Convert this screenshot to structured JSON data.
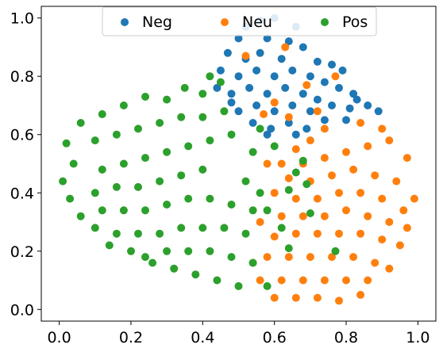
{
  "chart_data": {
    "type": "scatter",
    "title": "",
    "xlabel": "",
    "ylabel": "",
    "xlim": [
      -0.05,
      1.05
    ],
    "ylim": [
      -0.04,
      1.04
    ],
    "x_ticks": [
      0.0,
      0.2,
      0.4,
      0.6,
      0.8,
      1.0
    ],
    "x_tick_labels": [
      "0.0",
      "0.2",
      "0.4",
      "0.6",
      "0.8",
      "1.0"
    ],
    "y_ticks": [
      0.0,
      0.2,
      0.4,
      0.6,
      0.8,
      1.0
    ],
    "y_tick_labels": [
      "0.0",
      "0.2",
      "0.4",
      "0.6",
      "0.8",
      "1.0"
    ],
    "grid": false,
    "legend_position": "top-center",
    "series": [
      {
        "name": "Neg",
        "color": "#1f77b4",
        "points": [
          [
            0.52,
            0.97
          ],
          [
            0.56,
            0.99
          ],
          [
            0.6,
            1.0
          ],
          [
            0.66,
            0.97
          ],
          [
            0.64,
            0.92
          ],
          [
            0.58,
            0.93
          ],
          [
            0.5,
            0.93
          ],
          [
            0.47,
            0.88
          ],
          [
            0.52,
            0.86
          ],
          [
            0.56,
            0.88
          ],
          [
            0.62,
            0.86
          ],
          [
            0.68,
            0.9
          ],
          [
            0.72,
            0.85
          ],
          [
            0.76,
            0.84
          ],
          [
            0.79,
            0.82
          ],
          [
            0.45,
            0.82
          ],
          [
            0.5,
            0.8
          ],
          [
            0.55,
            0.82
          ],
          [
            0.6,
            0.8
          ],
          [
            0.65,
            0.82
          ],
          [
            0.7,
            0.8
          ],
          [
            0.74,
            0.78
          ],
          [
            0.78,
            0.76
          ],
          [
            0.82,
            0.74
          ],
          [
            0.44,
            0.76
          ],
          [
            0.48,
            0.74
          ],
          [
            0.53,
            0.76
          ],
          [
            0.58,
            0.74
          ],
          [
            0.63,
            0.76
          ],
          [
            0.68,
            0.74
          ],
          [
            0.72,
            0.72
          ],
          [
            0.76,
            0.7
          ],
          [
            0.81,
            0.69
          ],
          [
            0.86,
            0.7
          ],
          [
            0.89,
            0.68
          ],
          [
            0.5,
            0.68
          ],
          [
            0.55,
            0.7
          ],
          [
            0.6,
            0.68
          ],
          [
            0.65,
            0.7
          ],
          [
            0.7,
            0.68
          ],
          [
            0.74,
            0.65
          ],
          [
            0.8,
            0.65
          ],
          [
            0.54,
            0.64
          ],
          [
            0.59,
            0.62
          ],
          [
            0.64,
            0.64
          ],
          [
            0.69,
            0.62
          ],
          [
            0.66,
            0.6
          ],
          [
            0.58,
            0.6
          ],
          [
            0.48,
            0.71
          ],
          [
            0.83,
            0.72
          ]
        ]
      },
      {
        "name": "Neu",
        "color": "#ff7f0e",
        "points": [
          [
            0.52,
            0.87
          ],
          [
            0.63,
            0.9
          ],
          [
            0.69,
            0.77
          ],
          [
            0.77,
            0.8
          ],
          [
            0.6,
            0.71
          ],
          [
            0.57,
            0.67
          ],
          [
            0.72,
            0.68
          ],
          [
            0.64,
            0.66
          ],
          [
            0.7,
            0.58
          ],
          [
            0.66,
            0.55
          ],
          [
            0.62,
            0.5
          ],
          [
            0.68,
            0.5
          ],
          [
            0.74,
            0.52
          ],
          [
            0.8,
            0.54
          ],
          [
            0.86,
            0.56
          ],
          [
            0.92,
            0.58
          ],
          [
            0.97,
            0.52
          ],
          [
            0.64,
            0.45
          ],
          [
            0.7,
            0.44
          ],
          [
            0.76,
            0.46
          ],
          [
            0.82,
            0.48
          ],
          [
            0.88,
            0.46
          ],
          [
            0.94,
            0.44
          ],
          [
            0.99,
            0.38
          ],
          [
            0.6,
            0.4
          ],
          [
            0.66,
            0.38
          ],
          [
            0.72,
            0.38
          ],
          [
            0.78,
            0.4
          ],
          [
            0.84,
            0.4
          ],
          [
            0.9,
            0.38
          ],
          [
            0.96,
            0.34
          ],
          [
            0.62,
            0.32
          ],
          [
            0.68,
            0.32
          ],
          [
            0.74,
            0.32
          ],
          [
            0.8,
            0.34
          ],
          [
            0.86,
            0.32
          ],
          [
            0.92,
            0.3
          ],
          [
            0.97,
            0.28
          ],
          [
            0.6,
            0.25
          ],
          [
            0.66,
            0.26
          ],
          [
            0.72,
            0.26
          ],
          [
            0.78,
            0.26
          ],
          [
            0.84,
            0.26
          ],
          [
            0.9,
            0.24
          ],
          [
            0.95,
            0.22
          ],
          [
            0.58,
            0.18
          ],
          [
            0.64,
            0.18
          ],
          [
            0.7,
            0.18
          ],
          [
            0.76,
            0.18
          ],
          [
            0.82,
            0.18
          ],
          [
            0.88,
            0.16
          ],
          [
            0.92,
            0.14
          ],
          [
            0.56,
            0.1
          ],
          [
            0.62,
            0.1
          ],
          [
            0.68,
            0.1
          ],
          [
            0.74,
            0.1
          ],
          [
            0.8,
            0.1
          ],
          [
            0.86,
            0.1
          ],
          [
            0.6,
            0.04
          ],
          [
            0.66,
            0.04
          ],
          [
            0.72,
            0.04
          ],
          [
            0.78,
            0.03
          ],
          [
            0.84,
            0.05
          ],
          [
            0.54,
            0.16
          ],
          [
            0.56,
            0.3
          ],
          [
            0.58,
            0.5
          ],
          [
            0.74,
            0.62
          ],
          [
            0.84,
            0.64
          ],
          [
            0.9,
            0.62
          ]
        ]
      },
      {
        "name": "Pos",
        "color": "#2ca02c",
        "points": [
          [
            0.42,
            0.8
          ],
          [
            0.45,
            0.78
          ],
          [
            0.4,
            0.74
          ],
          [
            0.35,
            0.76
          ],
          [
            0.3,
            0.72
          ],
          [
            0.24,
            0.73
          ],
          [
            0.18,
            0.7
          ],
          [
            0.12,
            0.67
          ],
          [
            0.06,
            0.64
          ],
          [
            0.02,
            0.57
          ],
          [
            0.04,
            0.5
          ],
          [
            0.01,
            0.44
          ],
          [
            0.03,
            0.38
          ],
          [
            0.06,
            0.32
          ],
          [
            0.1,
            0.28
          ],
          [
            0.14,
            0.22
          ],
          [
            0.2,
            0.2
          ],
          [
            0.26,
            0.16
          ],
          [
            0.32,
            0.14
          ],
          [
            0.38,
            0.12
          ],
          [
            0.44,
            0.1
          ],
          [
            0.5,
            0.08
          ],
          [
            0.1,
            0.58
          ],
          [
            0.16,
            0.6
          ],
          [
            0.22,
            0.62
          ],
          [
            0.28,
            0.64
          ],
          [
            0.34,
            0.66
          ],
          [
            0.4,
            0.66
          ],
          [
            0.46,
            0.68
          ],
          [
            0.12,
            0.48
          ],
          [
            0.18,
            0.5
          ],
          [
            0.24,
            0.52
          ],
          [
            0.3,
            0.54
          ],
          [
            0.36,
            0.56
          ],
          [
            0.42,
            0.58
          ],
          [
            0.48,
            0.6
          ],
          [
            0.1,
            0.4
          ],
          [
            0.16,
            0.42
          ],
          [
            0.22,
            0.42
          ],
          [
            0.28,
            0.44
          ],
          [
            0.34,
            0.46
          ],
          [
            0.4,
            0.48
          ],
          [
            0.12,
            0.34
          ],
          [
            0.18,
            0.34
          ],
          [
            0.24,
            0.34
          ],
          [
            0.3,
            0.36
          ],
          [
            0.36,
            0.38
          ],
          [
            0.42,
            0.38
          ],
          [
            0.48,
            0.36
          ],
          [
            0.54,
            0.34
          ],
          [
            0.16,
            0.26
          ],
          [
            0.22,
            0.26
          ],
          [
            0.28,
            0.26
          ],
          [
            0.34,
            0.28
          ],
          [
            0.4,
            0.28
          ],
          [
            0.46,
            0.28
          ],
          [
            0.52,
            0.26
          ],
          [
            0.24,
            0.18
          ],
          [
            0.3,
            0.2
          ],
          [
            0.36,
            0.2
          ],
          [
            0.42,
            0.2
          ],
          [
            0.48,
            0.18
          ],
          [
            0.54,
            0.16
          ],
          [
            0.52,
            0.44
          ],
          [
            0.54,
            0.54
          ],
          [
            0.56,
            0.62
          ],
          [
            0.6,
            0.56
          ],
          [
            0.66,
            0.47
          ],
          [
            0.69,
            0.43
          ],
          [
            0.64,
            0.41
          ],
          [
            0.7,
            0.33
          ],
          [
            0.62,
            0.28
          ],
          [
            0.64,
            0.21
          ],
          [
            0.77,
            0.2
          ],
          [
            0.58,
            0.08
          ],
          [
            0.56,
            0.4
          ],
          [
            0.58,
            0.34
          ],
          [
            0.68,
            0.51
          ]
        ]
      }
    ]
  }
}
